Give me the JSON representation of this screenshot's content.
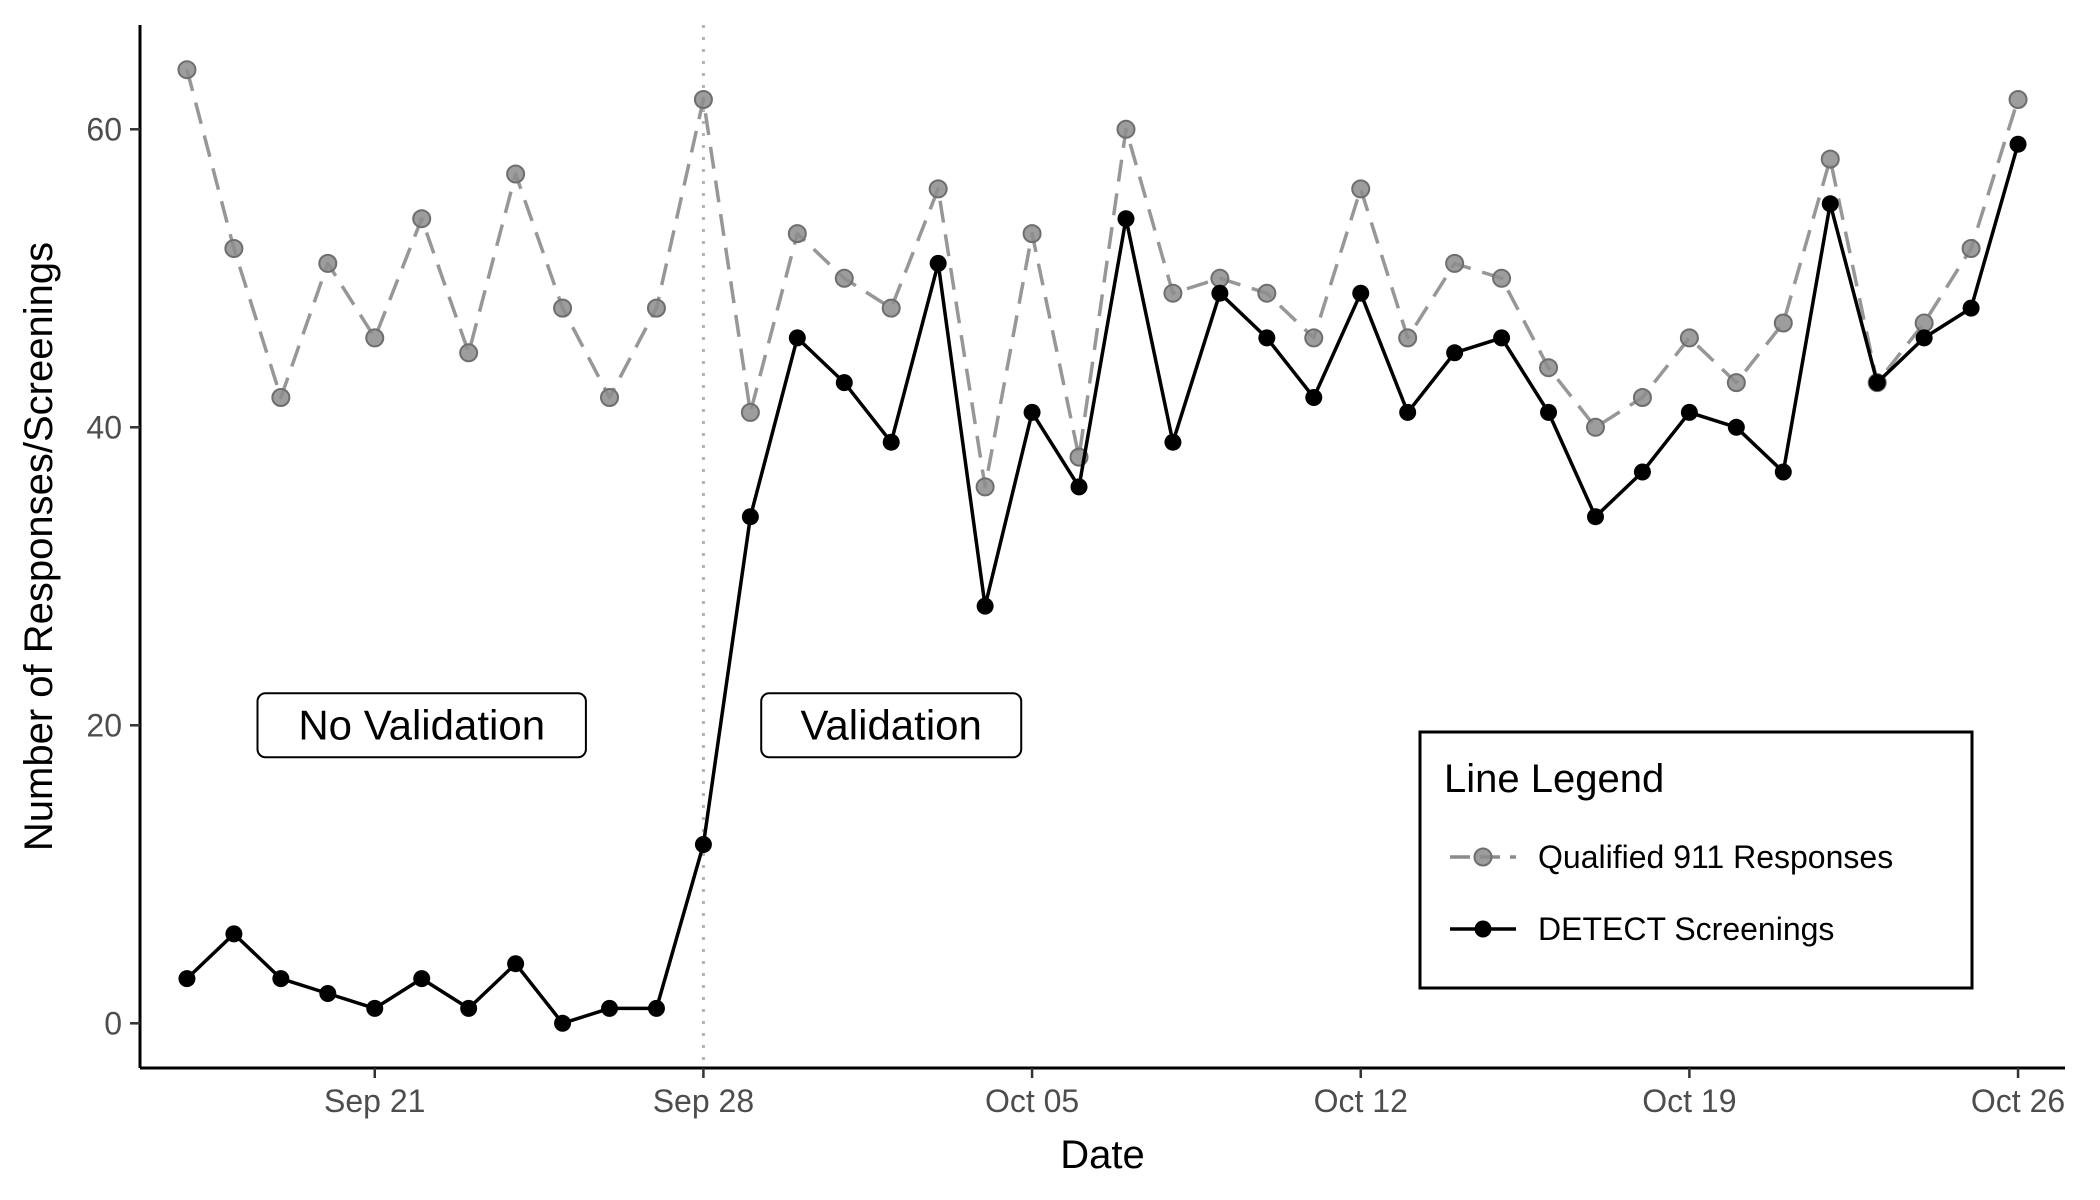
{
  "chart_data": {
    "type": "line",
    "title": "",
    "xlabel": "Date",
    "ylabel": "Number of Responses/Screenings",
    "x_tick_labels": [
      "Sep 21",
      "Sep 28",
      "Oct 05",
      "Oct 12",
      "Oct 19",
      "Oct 26"
    ],
    "y_tick_labels": [
      "0",
      "20",
      "40",
      "60"
    ],
    "y_ticks": [
      0,
      20,
      40,
      60
    ],
    "ylim": [
      -3,
      67
    ],
    "xlim": [
      "2015-09-16",
      "2015-10-27"
    ],
    "grid": false,
    "x": [
      "2015-09-17",
      "2015-09-18",
      "2015-09-19",
      "2015-09-20",
      "2015-09-21",
      "2015-09-22",
      "2015-09-23",
      "2015-09-24",
      "2015-09-25",
      "2015-09-26",
      "2015-09-27",
      "2015-09-28",
      "2015-09-29",
      "2015-09-30",
      "2015-10-01",
      "2015-10-02",
      "2015-10-03",
      "2015-10-04",
      "2015-10-05",
      "2015-10-06",
      "2015-10-07",
      "2015-10-08",
      "2015-10-09",
      "2015-10-10",
      "2015-10-11",
      "2015-10-12",
      "2015-10-13",
      "2015-10-14",
      "2015-10-15",
      "2015-10-16",
      "2015-10-17",
      "2015-10-18",
      "2015-10-19",
      "2015-10-20",
      "2015-10-21",
      "2015-10-22",
      "2015-10-23",
      "2015-10-24",
      "2015-10-25",
      "2015-10-26"
    ],
    "series": [
      {
        "name": "Qualified 911 Responses",
        "color": "#8c8c8c",
        "line_style": "dashed",
        "values": [
          64,
          52,
          42,
          51,
          46,
          54,
          45,
          57,
          48,
          42,
          48,
          62,
          41,
          53,
          50,
          48,
          56,
          36,
          53,
          38,
          60,
          49,
          50,
          49,
          46,
          56,
          46,
          51,
          50,
          44,
          40,
          42,
          46,
          43,
          47,
          58,
          43,
          47,
          52,
          62
        ]
      },
      {
        "name": "DETECT Screenings",
        "color": "#000000",
        "line_style": "solid",
        "values": [
          3,
          6,
          3,
          2,
          1,
          3,
          1,
          4,
          0,
          1,
          1,
          12,
          34,
          46,
          43,
          39,
          51,
          28,
          41,
          36,
          54,
          39,
          49,
          46,
          42,
          49,
          41,
          45,
          46,
          41,
          34,
          37,
          41,
          40,
          37,
          55,
          43,
          46,
          48,
          59
        ]
      }
    ],
    "vline": {
      "x": "2015-09-28",
      "style": "dotted",
      "color": "#b3b3b3"
    },
    "annotations": [
      {
        "text": "No Validation",
        "x": "2015-09-22",
        "y": 20
      },
      {
        "text": "Validation",
        "x": "2015-10-02",
        "y": 20
      }
    ],
    "legend": {
      "title": "Line Legend",
      "placement": "bottom-right",
      "entries": [
        "Qualified 911 Responses",
        "DETECT Screenings"
      ]
    }
  }
}
